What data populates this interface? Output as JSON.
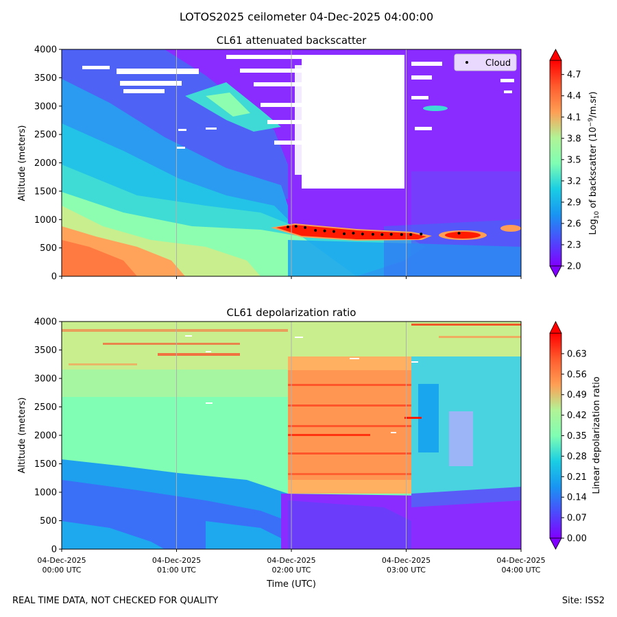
{
  "figure_title": "LOTOS2025 ceilometer 04-Dec-2025 04:00:00",
  "footer": {
    "left": "REAL TIME DATA, NOT CHECKED FOR QUALITY",
    "right": "Site: ISS2"
  },
  "colors": {
    "colormap": "rainbow",
    "grid": "#b0b0b0",
    "missing": "#ffffff",
    "cloud_marker": "#000000"
  },
  "chart_data": [
    {
      "type": "heatmap",
      "title": "CL61 attenuated backscatter",
      "xlabel": "",
      "ylabel": "Altitude (meters)",
      "ylim": [
        0,
        4000
      ],
      "yticks": [
        0,
        500,
        1000,
        1500,
        2000,
        2500,
        3000,
        3500,
        4000
      ],
      "xlim_hours": [
        0,
        4
      ],
      "xtick_hours": [
        0,
        1,
        2,
        3,
        4
      ],
      "grid_x": true,
      "colorbar": {
        "label_pre": "Log",
        "label_sub": "10",
        "label_mid": " of backscatter (10",
        "label_sup": "−9",
        "label_post": "/m.sr)",
        "range": [
          2.0,
          4.9
        ],
        "ticks": [
          "2.0",
          "2.3",
          "2.6",
          "2.9",
          "3.2",
          "3.5",
          "3.8",
          "4.1",
          "4.4",
          "4.7"
        ],
        "extend": "both"
      },
      "legend": {
        "position": "top-right",
        "entries": [
          "Cloud"
        ]
      },
      "cloud_points": {
        "hour": [
          1.97,
          2.04,
          2.12,
          2.21,
          2.29,
          2.37,
          2.46,
          2.54,
          2.62,
          2.71,
          2.79,
          2.87,
          2.96,
          3.04,
          3.13,
          3.46
        ],
        "altitude": [
          870,
          880,
          860,
          810,
          800,
          790,
          750,
          760,
          745,
          740,
          735,
          740,
          735,
          735,
          745,
          760
        ]
      }
    },
    {
      "type": "heatmap",
      "title": "CL61 depolarization ratio",
      "xlabel": "Time (UTC)",
      "ylabel": "Altitude (meters)",
      "ylim": [
        0,
        4000
      ],
      "yticks": [
        0,
        500,
        1000,
        1500,
        2000,
        2500,
        3000,
        3500,
        4000
      ],
      "xlim_hours": [
        0,
        4
      ],
      "xtick_hours": [
        0,
        1,
        2,
        3,
        4
      ],
      "xtick_labels": [
        [
          "04-Dec-2025",
          "00:00 UTC"
        ],
        [
          "04-Dec-2025",
          "01:00 UTC"
        ],
        [
          "04-Dec-2025",
          "02:00 UTC"
        ],
        [
          "04-Dec-2025",
          "03:00 UTC"
        ],
        [
          "04-Dec-2025",
          "04:00 UTC"
        ]
      ],
      "grid_x": true,
      "colorbar": {
        "label": "Linear depolarization ratio",
        "range": [
          0.0,
          0.7
        ],
        "ticks": [
          "0.00",
          "0.07",
          "0.14",
          "0.21",
          "0.28",
          "0.35",
          "0.42",
          "0.49",
          "0.56",
          "0.63"
        ],
        "extend": "both"
      }
    }
  ]
}
